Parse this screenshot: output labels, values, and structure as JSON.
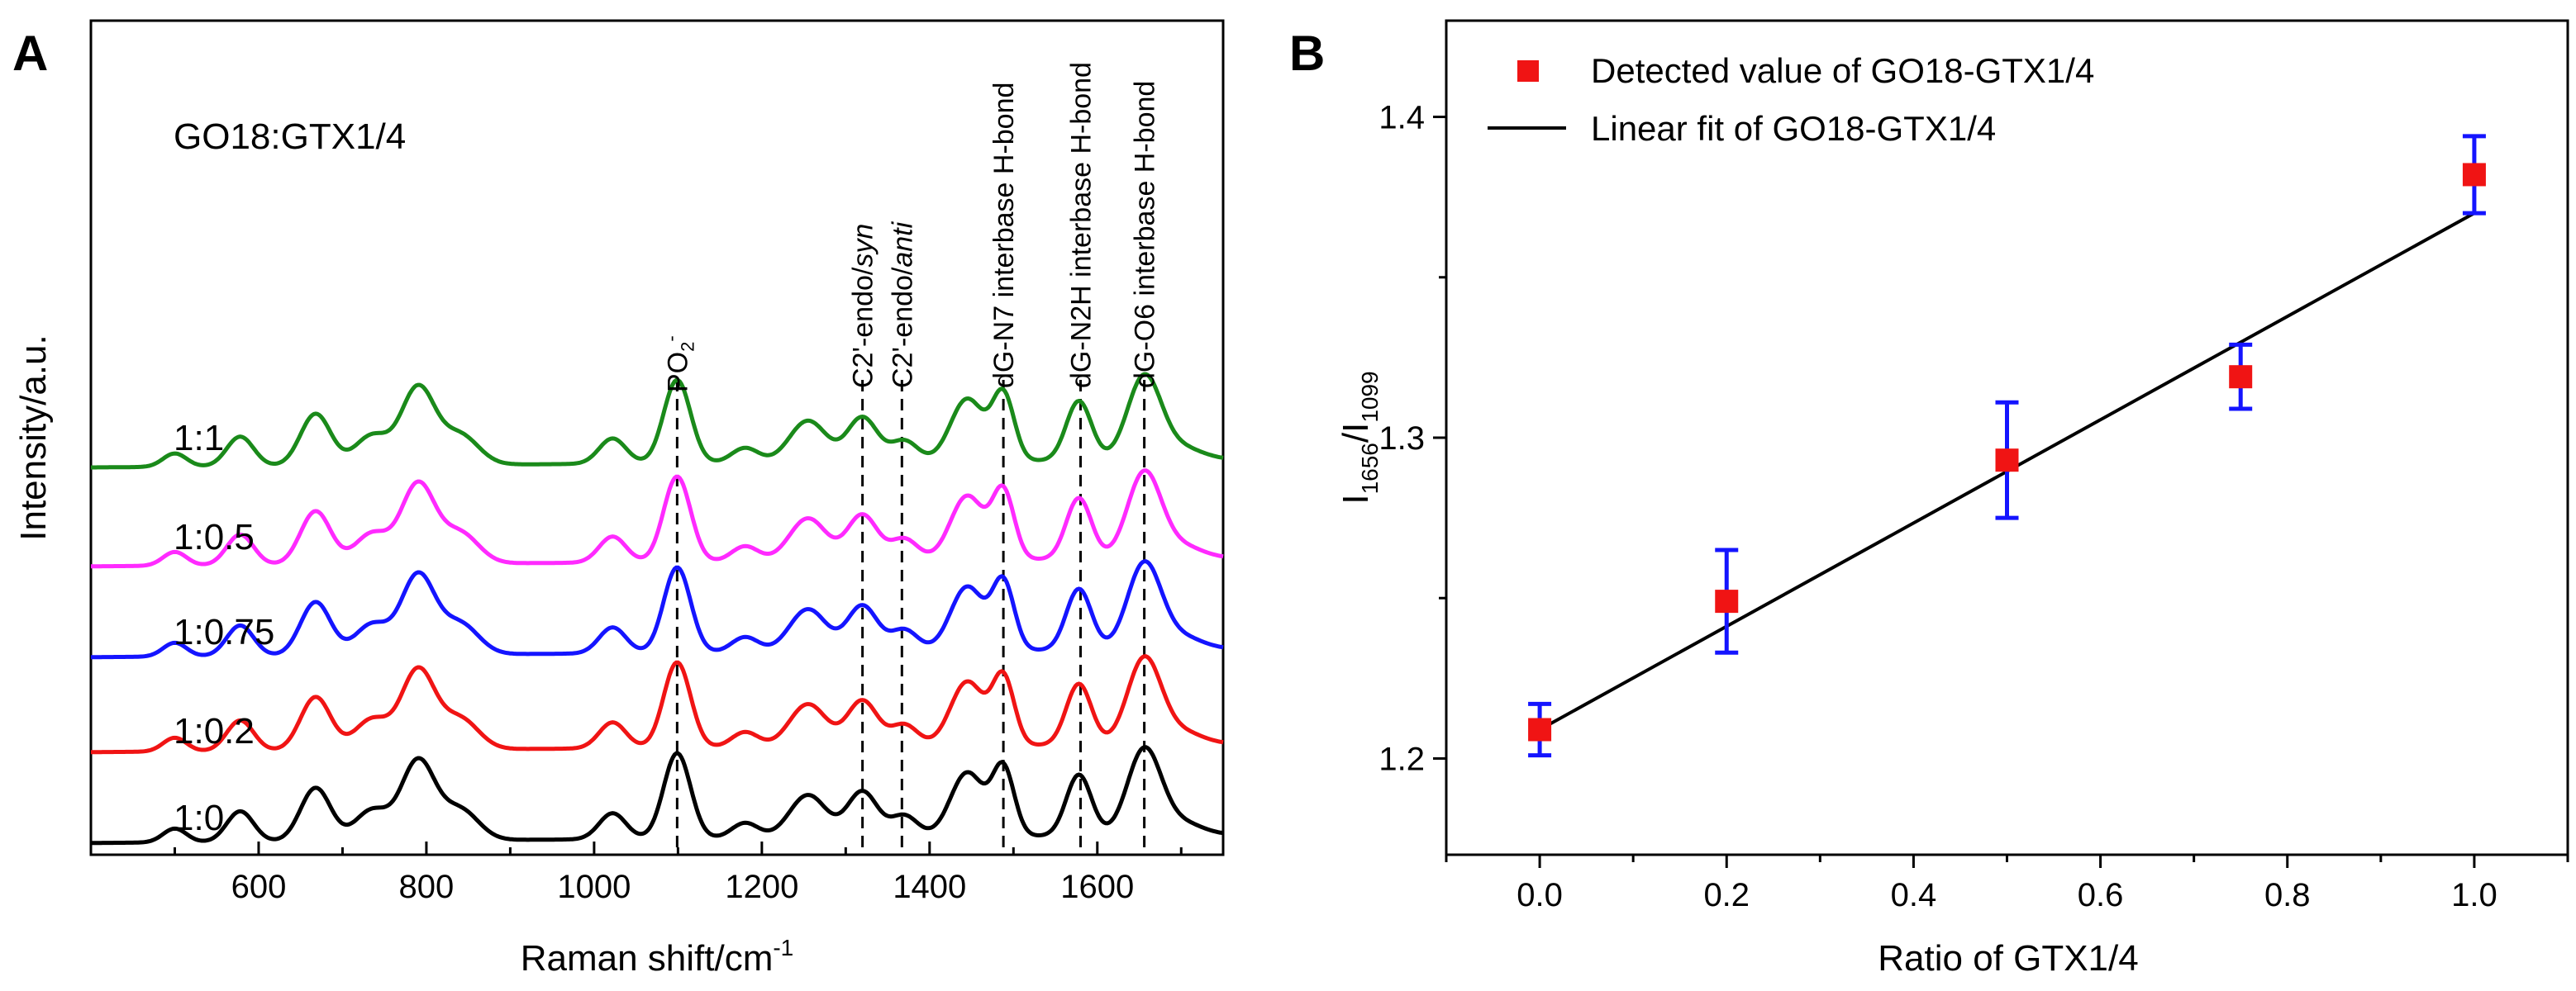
{
  "chart_data": [
    {
      "panel": "A",
      "type": "line",
      "sample_label": "GO18:GTX1/4",
      "xlabel": "Raman shift/cm-1",
      "xlabel_main": "Raman shift/cm",
      "xlabel_sup": "-1",
      "ylabel": "Intensity/a.u.",
      "xlim": [
        400,
        1750
      ],
      "xticks": [
        600,
        800,
        1000,
        1200,
        1400,
        1600
      ],
      "xtick_labels": [
        "600",
        "800",
        "1000",
        "1200",
        "1400",
        "1600"
      ],
      "series": [
        {
          "name": "1:1",
          "color": "#1a8a1a"
        },
        {
          "name": "1:0.5",
          "color": "#ff2aff"
        },
        {
          "name": "1:0.75",
          "color": "#1414ff"
        },
        {
          "name": "1:0.2",
          "color": "#f01414"
        },
        {
          "name": "1:0",
          "color": "#000000"
        }
      ],
      "peaks": [
        {
          "x": 500,
          "h": 0.09,
          "w": 14
        },
        {
          "x": 578,
          "h": 0.2,
          "w": 16
        },
        {
          "x": 668,
          "h": 0.35,
          "w": 18
        },
        {
          "x": 735,
          "h": 0.2,
          "w": 20
        },
        {
          "x": 790,
          "h": 0.52,
          "w": 20
        },
        {
          "x": 840,
          "h": 0.2,
          "w": 22
        },
        {
          "x": 1022,
          "h": 0.17,
          "w": 16
        },
        {
          "x": 1099,
          "h": 0.56,
          "w": 16
        },
        {
          "x": 1180,
          "h": 0.1,
          "w": 16
        },
        {
          "x": 1255,
          "h": 0.28,
          "w": 22
        },
        {
          "x": 1320,
          "h": 0.3,
          "w": 18
        },
        {
          "x": 1370,
          "h": 0.14,
          "w": 16
        },
        {
          "x": 1445,
          "h": 0.42,
          "w": 20
        },
        {
          "x": 1488,
          "h": 0.44,
          "w": 13
        },
        {
          "x": 1578,
          "h": 0.4,
          "w": 15
        },
        {
          "x": 1656,
          "h": 0.56,
          "w": 20
        },
        {
          "x": 1700,
          "h": 0.08,
          "w": 25
        }
      ],
      "annotations": [
        {
          "x": 1099,
          "label": "PO2-",
          "main": "PO",
          "sub": "2",
          "sup": "-"
        },
        {
          "x": 1320,
          "label": "C2'-endo/syn",
          "main": "C2'-endo/",
          "italic": "syn"
        },
        {
          "x": 1367,
          "label": "C2'-endo/anti",
          "main": "C2'-endo/",
          "italic": "anti"
        },
        {
          "x": 1488,
          "label": "dG-N7 interbase H-bond",
          "main": "dG-N7 interbase H-bond"
        },
        {
          "x": 1580,
          "label": "dG-N2H interbase H-bond",
          "main": "dG-N2H interbase H-bond"
        },
        {
          "x": 1656,
          "label": "dG-O6 interbase H-bond",
          "main": "dG-O6 interbase H-bond"
        }
      ]
    },
    {
      "panel": "B",
      "type": "scatter",
      "xlabel": "Ratio of GTX1/4",
      "ylabel": "I1656/I1099",
      "ylabel_base": "I",
      "ylabel_sub1": "1656",
      "ylabel_sep": "/I",
      "ylabel_sub2": "1099",
      "xlim": [
        -0.1,
        1.1
      ],
      "ylim": [
        1.17,
        1.43
      ],
      "xticks": [
        0.0,
        0.2,
        0.4,
        0.6,
        0.8,
        1.0
      ],
      "xtick_labels": [
        "0.0",
        "0.2",
        "0.4",
        "0.6",
        "0.8",
        "1.0"
      ],
      "yticks": [
        1.2,
        1.3,
        1.4
      ],
      "ytick_labels": [
        "1.2",
        "1.3",
        "1.4"
      ],
      "series": [
        {
          "name": "Detected value of GO18-GTX1/4",
          "color": "#f01414",
          "err_color": "#1414ff",
          "x": [
            0.0,
            0.2,
            0.5,
            0.75,
            1.0
          ],
          "y": [
            1.209,
            1.249,
            1.293,
            1.319,
            1.382
          ],
          "err": [
            0.008,
            0.016,
            0.018,
            0.01,
            0.012
          ]
        },
        {
          "name": "Linear fit of GO18-GTX1/4",
          "color": "#000000",
          "x": [
            0.0,
            1.0
          ],
          "y": [
            1.209,
            1.37
          ]
        }
      ]
    }
  ],
  "panel_labels": {
    "a": "A",
    "b": "B"
  }
}
